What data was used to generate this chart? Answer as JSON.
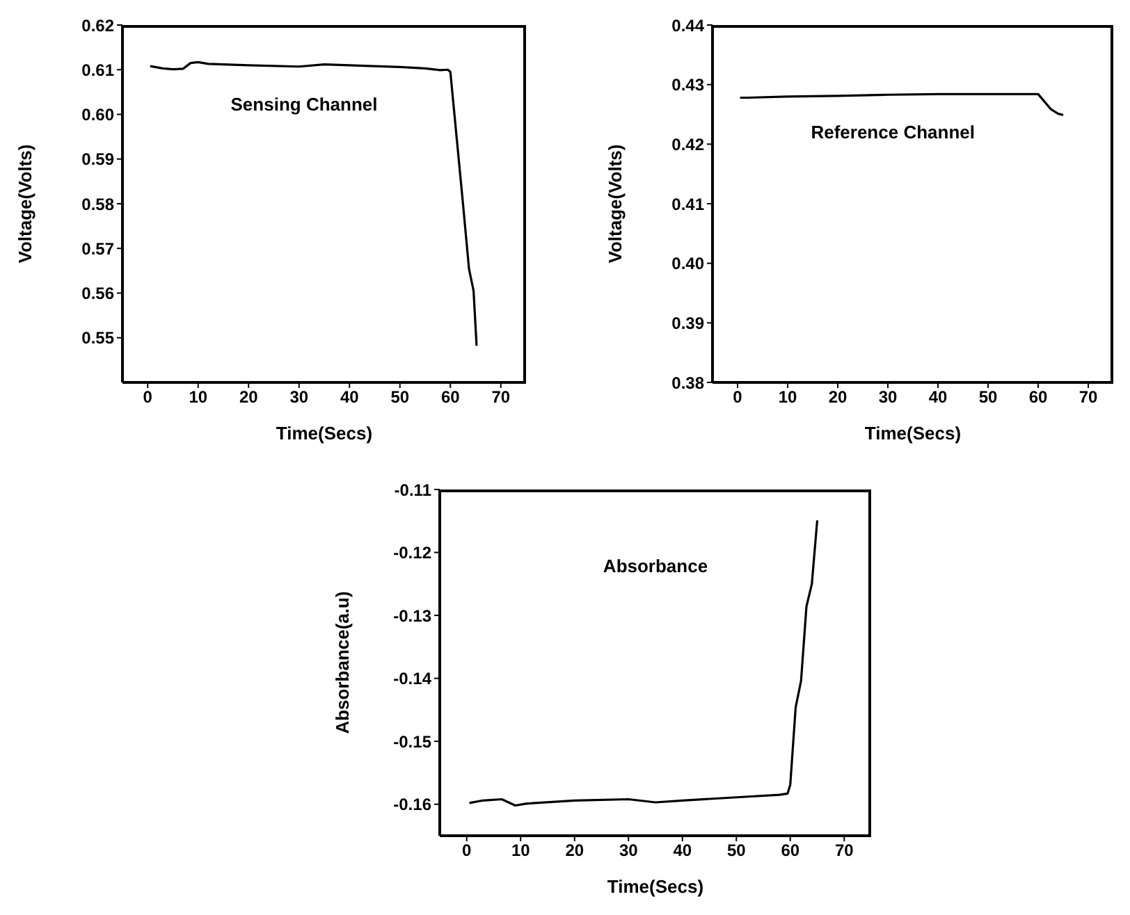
{
  "chart_data": [
    {
      "type": "line",
      "xlabel": "Time(Secs)",
      "ylabel": "Voltage(Volts)",
      "annotations": [
        "Sensing Channel"
      ],
      "marker": "none",
      "xlim": [
        -5,
        75
      ],
      "xticks": [
        0,
        10,
        20,
        30,
        40,
        50,
        60,
        70
      ],
      "ylim": [
        0.54,
        0.62
      ],
      "yticks": [
        0.55,
        0.56,
        0.57,
        0.58,
        0.59,
        {
          "value": 0.6,
          "label": "0.60"
        },
        0.61,
        0.62
      ],
      "series": [
        {
          "color": "#000000",
          "x": [
            0.5,
            3,
            5,
            7,
            8.5,
            10,
            12,
            20,
            30,
            35,
            40,
            50,
            55,
            58,
            59.5,
            60,
            61.4,
            62.5,
            63.7,
            64.6,
            65.2
          ],
          "values": [
            0.6108,
            0.6103,
            0.6101,
            0.6102,
            0.6115,
            0.6117,
            0.6113,
            0.611,
            0.6107,
            0.6112,
            0.611,
            0.6106,
            0.6103,
            0.6099,
            0.61,
            0.6095,
            0.593,
            0.58,
            0.5654,
            0.5605,
            0.5482
          ]
        }
      ]
    },
    {
      "type": "line",
      "xlabel": "Time(Secs)",
      "ylabel": "Voltage(Volts)",
      "annotations": [
        "Reference Channel"
      ],
      "marker": "none",
      "xlim": [
        -5,
        75
      ],
      "xticks": [
        0,
        10,
        20,
        30,
        40,
        50,
        60,
        70
      ],
      "ylim": [
        0.38,
        0.44
      ],
      "yticks": [
        0.38,
        0.39,
        {
          "value": 0.4,
          "label": "0.40"
        },
        0.41,
        0.42,
        0.43,
        0.44
      ],
      "series": [
        {
          "color": "#000000",
          "x": [
            0.5,
            2,
            10,
            20,
            30,
            40,
            50,
            60,
            62.5,
            64,
            65
          ],
          "values": [
            0.4278,
            0.4278,
            0.428,
            0.4281,
            0.4283,
            0.4284,
            0.4284,
            0.4284,
            0.4259,
            0.4251,
            0.4249
          ]
        }
      ]
    },
    {
      "type": "line",
      "xlabel": "Time(Secs)",
      "ylabel": "Absorbance(a.u)",
      "annotations": [
        "Absorbance"
      ],
      "marker": "none",
      "xlim": [
        -5,
        75
      ],
      "xticks": [
        0,
        10,
        20,
        30,
        40,
        50,
        60,
        70
      ],
      "ylim": [
        -0.165,
        -0.11
      ],
      "yticks": [
        -0.16,
        -0.15,
        -0.14,
        -0.13,
        -0.12,
        -0.11
      ],
      "series": [
        {
          "color": "#000000",
          "x": [
            0.5,
            3,
            6.5,
            9,
            11,
            20,
            30,
            35,
            40,
            50,
            58,
            59.5,
            60,
            61,
            62,
            63,
            64,
            65
          ],
          "values": [
            -0.1598,
            -0.1594,
            -0.1592,
            -0.1602,
            -0.1599,
            -0.1594,
            -0.1592,
            -0.1597,
            -0.1594,
            -0.1589,
            -0.1585,
            -0.1583,
            -0.1569,
            -0.1446,
            -0.1404,
            -0.1286,
            -0.125,
            -0.1149
          ]
        }
      ]
    }
  ]
}
